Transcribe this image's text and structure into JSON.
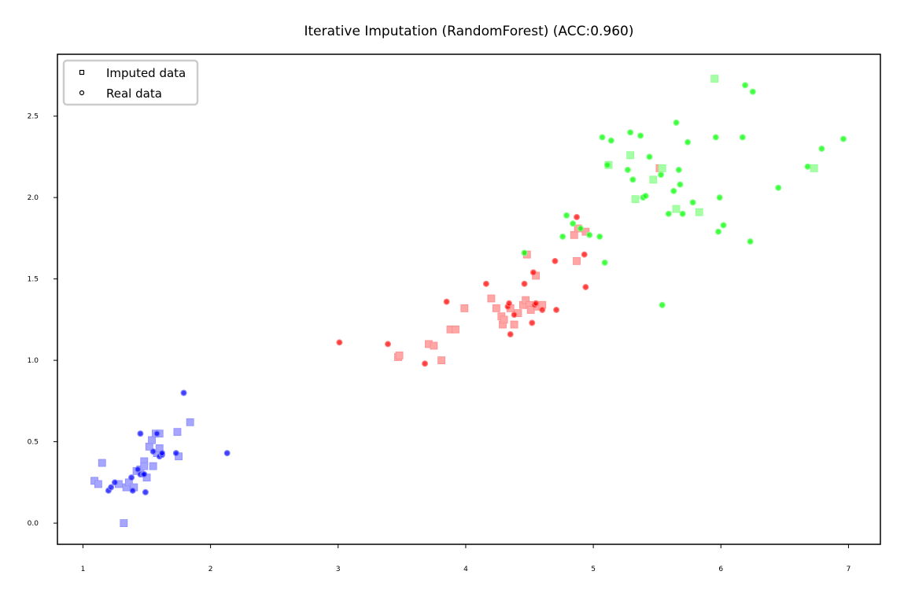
{
  "chart_data": {
    "type": "scatter",
    "title": "Iterative Imputation (RandomForest) (ACC:0.960)",
    "xlabel": "",
    "ylabel": "",
    "xlim": [
      0.8,
      7.25
    ],
    "ylim": [
      -0.13,
      2.88
    ],
    "xticks": [
      1,
      2,
      3,
      4,
      5,
      6,
      7
    ],
    "yticks": [
      0.0,
      0.5,
      1.0,
      1.5,
      2.0,
      2.5
    ],
    "xtick_labels": [
      "1",
      "2",
      "3",
      "4",
      "5",
      "6",
      "7"
    ],
    "ytick_labels": [
      "0.0",
      "0.5",
      "1.0",
      "1.5",
      "2.0",
      "2.5"
    ],
    "grid": false,
    "legend": {
      "position": "top-left",
      "entries": [
        {
          "label": "Imputed data",
          "marker": "square"
        },
        {
          "label": "Real data",
          "marker": "circle"
        }
      ]
    },
    "series": [
      {
        "class_color": "#0000ff",
        "kind": "real",
        "marker": "circle",
        "points": [
          [
            1.2,
            0.2
          ],
          [
            1.22,
            0.22
          ],
          [
            1.25,
            0.25
          ],
          [
            1.38,
            0.28
          ],
          [
            1.39,
            0.2
          ],
          [
            1.43,
            0.33
          ],
          [
            1.45,
            0.55
          ],
          [
            1.45,
            0.3
          ],
          [
            1.47,
            0.3
          ],
          [
            1.48,
            0.3
          ],
          [
            1.49,
            0.19
          ],
          [
            1.55,
            0.44
          ],
          [
            1.58,
            0.55
          ],
          [
            1.6,
            0.41
          ],
          [
            1.62,
            0.42
          ],
          [
            1.62,
            0.43
          ],
          [
            1.73,
            0.43
          ],
          [
            1.79,
            0.8
          ],
          [
            2.13,
            0.43
          ]
        ]
      },
      {
        "class_color": "#0000ff",
        "kind": "imputed",
        "marker": "square",
        "points": [
          [
            1.09,
            0.26
          ],
          [
            1.12,
            0.24
          ],
          [
            1.15,
            0.37
          ],
          [
            1.28,
            0.24
          ],
          [
            1.32,
            0.0
          ],
          [
            1.34,
            0.22
          ],
          [
            1.36,
            0.25
          ],
          [
            1.4,
            0.22
          ],
          [
            1.42,
            0.32
          ],
          [
            1.45,
            0.33
          ],
          [
            1.48,
            0.38
          ],
          [
            1.48,
            0.35
          ],
          [
            1.5,
            0.28
          ],
          [
            1.52,
            0.47
          ],
          [
            1.54,
            0.51
          ],
          [
            1.55,
            0.35
          ],
          [
            1.57,
            0.55
          ],
          [
            1.58,
            0.43
          ],
          [
            1.6,
            0.55
          ],
          [
            1.6,
            0.46
          ],
          [
            1.74,
            0.56
          ],
          [
            1.75,
            0.41
          ],
          [
            1.84,
            0.62
          ]
        ]
      },
      {
        "class_color": "#ff0000",
        "kind": "real",
        "marker": "circle",
        "points": [
          [
            3.01,
            1.11
          ],
          [
            3.39,
            1.1
          ],
          [
            3.68,
            0.98
          ],
          [
            3.85,
            1.36
          ],
          [
            4.16,
            1.47
          ],
          [
            4.33,
            1.33
          ],
          [
            4.34,
            1.35
          ],
          [
            4.35,
            1.16
          ],
          [
            4.38,
            1.28
          ],
          [
            4.46,
            1.47
          ],
          [
            4.52,
            1.23
          ],
          [
            4.53,
            1.54
          ],
          [
            4.54,
            1.34
          ],
          [
            4.55,
            1.35
          ],
          [
            4.6,
            1.31
          ],
          [
            4.7,
            1.61
          ],
          [
            4.71,
            1.31
          ],
          [
            4.87,
            1.88
          ],
          [
            4.93,
            1.65
          ],
          [
            4.94,
            1.45
          ]
        ]
      },
      {
        "class_color": "#ff0000",
        "kind": "imputed",
        "marker": "square",
        "points": [
          [
            3.47,
            1.02
          ],
          [
            3.48,
            1.03
          ],
          [
            3.71,
            1.1
          ],
          [
            3.75,
            1.09
          ],
          [
            3.81,
            1.0
          ],
          [
            3.88,
            1.19
          ],
          [
            3.92,
            1.19
          ],
          [
            3.99,
            1.32
          ],
          [
            4.2,
            1.38
          ],
          [
            4.24,
            1.32
          ],
          [
            4.28,
            1.27
          ],
          [
            4.29,
            1.22
          ],
          [
            4.3,
            1.25
          ],
          [
            4.35,
            1.32
          ],
          [
            4.38,
            1.22
          ],
          [
            4.41,
            1.29
          ],
          [
            4.45,
            1.34
          ],
          [
            4.47,
            1.37
          ],
          [
            4.48,
            1.65
          ],
          [
            4.5,
            1.34
          ],
          [
            4.51,
            1.31
          ],
          [
            4.55,
            1.52
          ],
          [
            4.56,
            1.33
          ],
          [
            4.6,
            1.34
          ],
          [
            4.85,
            1.77
          ],
          [
            4.87,
            1.61
          ],
          [
            4.88,
            1.81
          ],
          [
            4.94,
            1.79
          ],
          [
            5.52,
            2.18
          ]
        ]
      },
      {
        "class_color": "#00ff00",
        "kind": "real",
        "marker": "circle",
        "points": [
          [
            4.46,
            1.66
          ],
          [
            4.76,
            1.76
          ],
          [
            4.79,
            1.89
          ],
          [
            4.84,
            1.84
          ],
          [
            4.9,
            1.81
          ],
          [
            4.97,
            1.77
          ],
          [
            5.05,
            1.76
          ],
          [
            5.07,
            2.37
          ],
          [
            5.09,
            1.6
          ],
          [
            5.11,
            2.2
          ],
          [
            5.14,
            2.35
          ],
          [
            5.27,
            2.17
          ],
          [
            5.29,
            2.4
          ],
          [
            5.31,
            2.11
          ],
          [
            5.37,
            2.38
          ],
          [
            5.39,
            2.0
          ],
          [
            5.41,
            2.01
          ],
          [
            5.44,
            2.25
          ],
          [
            5.53,
            2.14
          ],
          [
            5.54,
            1.34
          ],
          [
            5.59,
            1.9
          ],
          [
            5.63,
            2.04
          ],
          [
            5.65,
            2.46
          ],
          [
            5.67,
            2.17
          ],
          [
            5.68,
            2.08
          ],
          [
            5.7,
            1.9
          ],
          [
            5.74,
            2.34
          ],
          [
            5.78,
            1.97
          ],
          [
            5.96,
            2.37
          ],
          [
            5.98,
            1.79
          ],
          [
            5.99,
            2.0
          ],
          [
            6.02,
            1.83
          ],
          [
            6.17,
            2.37
          ],
          [
            6.19,
            2.69
          ],
          [
            6.23,
            1.73
          ],
          [
            6.25,
            2.65
          ],
          [
            6.45,
            2.06
          ],
          [
            6.68,
            2.19
          ],
          [
            6.79,
            2.3
          ],
          [
            6.96,
            2.36
          ]
        ]
      },
      {
        "class_color": "#00ff00",
        "kind": "imputed",
        "marker": "square",
        "points": [
          [
            5.12,
            2.2
          ],
          [
            5.29,
            2.26
          ],
          [
            5.33,
            1.99
          ],
          [
            5.47,
            2.11
          ],
          [
            5.54,
            2.18
          ],
          [
            5.65,
            1.93
          ],
          [
            5.83,
            1.91
          ],
          [
            5.95,
            2.73
          ],
          [
            6.73,
            2.18
          ]
        ]
      }
    ]
  }
}
